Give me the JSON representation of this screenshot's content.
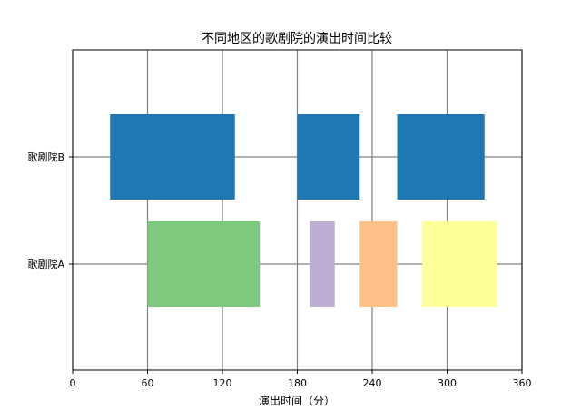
{
  "chart_data": {
    "type": "broken_barh",
    "title": "不同地区的歌剧院的演出时间比较",
    "xlabel": "演出时间（分）",
    "ylabel": "",
    "xlim": [
      0,
      360
    ],
    "xticks": [
      0,
      60,
      120,
      180,
      240,
      300,
      360
    ],
    "xtick_labels": [
      "0",
      "60",
      "120",
      "180",
      "240",
      "300",
      "360"
    ],
    "ytick_labels": [
      "歌剧院A",
      "歌剧院B"
    ],
    "grid": true,
    "grid_color": "#808080",
    "legend": "none",
    "series": [
      {
        "category": "歌剧院A",
        "bars": [
          {
            "start": 60,
            "duration": 90,
            "color": "#7fc97f"
          },
          {
            "start": 190,
            "duration": 20,
            "color": "#beaed4"
          },
          {
            "start": 230,
            "duration": 30,
            "color": "#fdc086"
          },
          {
            "start": 280,
            "duration": 60,
            "color": "#ffff99"
          }
        ]
      },
      {
        "category": "歌剧院B",
        "bars": [
          {
            "start": 30,
            "duration": 100,
            "color": "#1f77b4"
          },
          {
            "start": 180,
            "duration": 50,
            "color": "#1f77b4"
          },
          {
            "start": 260,
            "duration": 70,
            "color": "#1f77b4"
          }
        ]
      }
    ]
  }
}
